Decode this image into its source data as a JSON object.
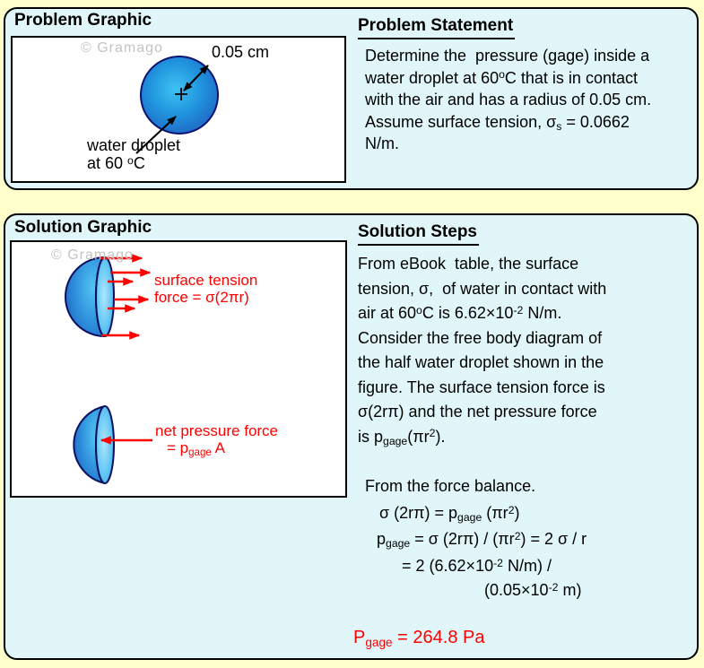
{
  "theme": {
    "page_bg": "#FFFFCC",
    "panel_bg": "#E0F6F8",
    "panel_border": "#000000",
    "box_bg": "#FFFFFF",
    "text": "#000000",
    "red": "#FF0000",
    "watermark": "#C4C4C4",
    "droplet_center": "#3EC2F2",
    "droplet_edge": "#1F63C2",
    "droplet_outline": "#0C1272"
  },
  "problem_panel": {
    "graphic_title": "Problem Graphic",
    "watermark": "© Gramago",
    "radius_label": "0.05 cm",
    "droplet_caption": [
      [
        {
          "t": "water droplet"
        }
      ],
      [
        {
          "t": "at 60 "
        },
        {
          "sup": "o"
        },
        {
          "t": "C"
        }
      ]
    ],
    "statement_title": "Problem Statement",
    "statement_lines": [
      [
        {
          "t": "Determine the  pressure (gage) inside a"
        }
      ],
      [
        {
          "t": "water droplet at 60"
        },
        {
          "sup": "o"
        },
        {
          "t": "C that is in contact"
        }
      ],
      [
        {
          "t": "with the air and has a radius of 0.05 cm."
        }
      ],
      [
        {
          "t": "Assume surface tension, σ"
        },
        {
          "sub": "s"
        },
        {
          "t": " = 0.0662"
        }
      ],
      [
        {
          "t": "N/m."
        }
      ]
    ]
  },
  "solution_panel": {
    "graphic_title": "Solution Graphic",
    "watermark": "© Gramago",
    "surface_tension_label": [
      [
        {
          "t": "surface tension"
        }
      ],
      [
        {
          "t": "force = σ(2πr)"
        }
      ]
    ],
    "pressure_label": [
      [
        {
          "t": "net pressure force"
        }
      ],
      [
        {
          "t": "= p"
        },
        {
          "sub": "gage"
        },
        {
          "t": " A"
        }
      ]
    ],
    "steps_title": "Solution Steps",
    "steps_lines": [
      [
        {
          "t": "From eBook  table, the surface"
        }
      ],
      [
        {
          "t": "tension, σ,  of water in contact with"
        }
      ],
      [
        {
          "t": "air at 60"
        },
        {
          "sup": "o"
        },
        {
          "t": "C is 6.62×10"
        },
        {
          "sup": "-2"
        },
        {
          "t": " N/m."
        }
      ],
      [
        {
          "t": "Consider the free body diagram of"
        }
      ],
      [
        {
          "t": "the half water droplet shown in the"
        }
      ],
      [
        {
          "t": "figure. The surface tension force is"
        }
      ],
      [
        {
          "t": "σ(2rπ) and the net pressure force"
        }
      ],
      [
        {
          "t": "is p"
        },
        {
          "sub": "gage"
        },
        {
          "t": "(πr"
        },
        {
          "sup": "2"
        },
        {
          "t": ")."
        }
      ]
    ],
    "balance_intro": "From the force balance.",
    "equation_lines": [
      [
        {
          "t": "σ (2rπ) = p"
        },
        {
          "sub": "gage"
        },
        {
          "t": " (πr"
        },
        {
          "sup": "2"
        },
        {
          "t": ")"
        }
      ],
      [
        {
          "t": "p"
        },
        {
          "sub": "gage"
        },
        {
          "t": " = σ (2rπ) / (πr"
        },
        {
          "sup": "2"
        },
        {
          "t": ") = 2 σ / r"
        }
      ],
      [
        {
          "t": "= 2 (6.62×10"
        },
        {
          "sup": "-2"
        },
        {
          "t": " N/m) /"
        }
      ],
      [
        {
          "t": "(0.05×10"
        },
        {
          "sup": "-2"
        },
        {
          "t": " m)"
        }
      ]
    ],
    "result": [
      {
        "t": "P"
      },
      {
        "sub": "gage"
      },
      {
        "t": " = 264.8 Pa"
      }
    ]
  }
}
